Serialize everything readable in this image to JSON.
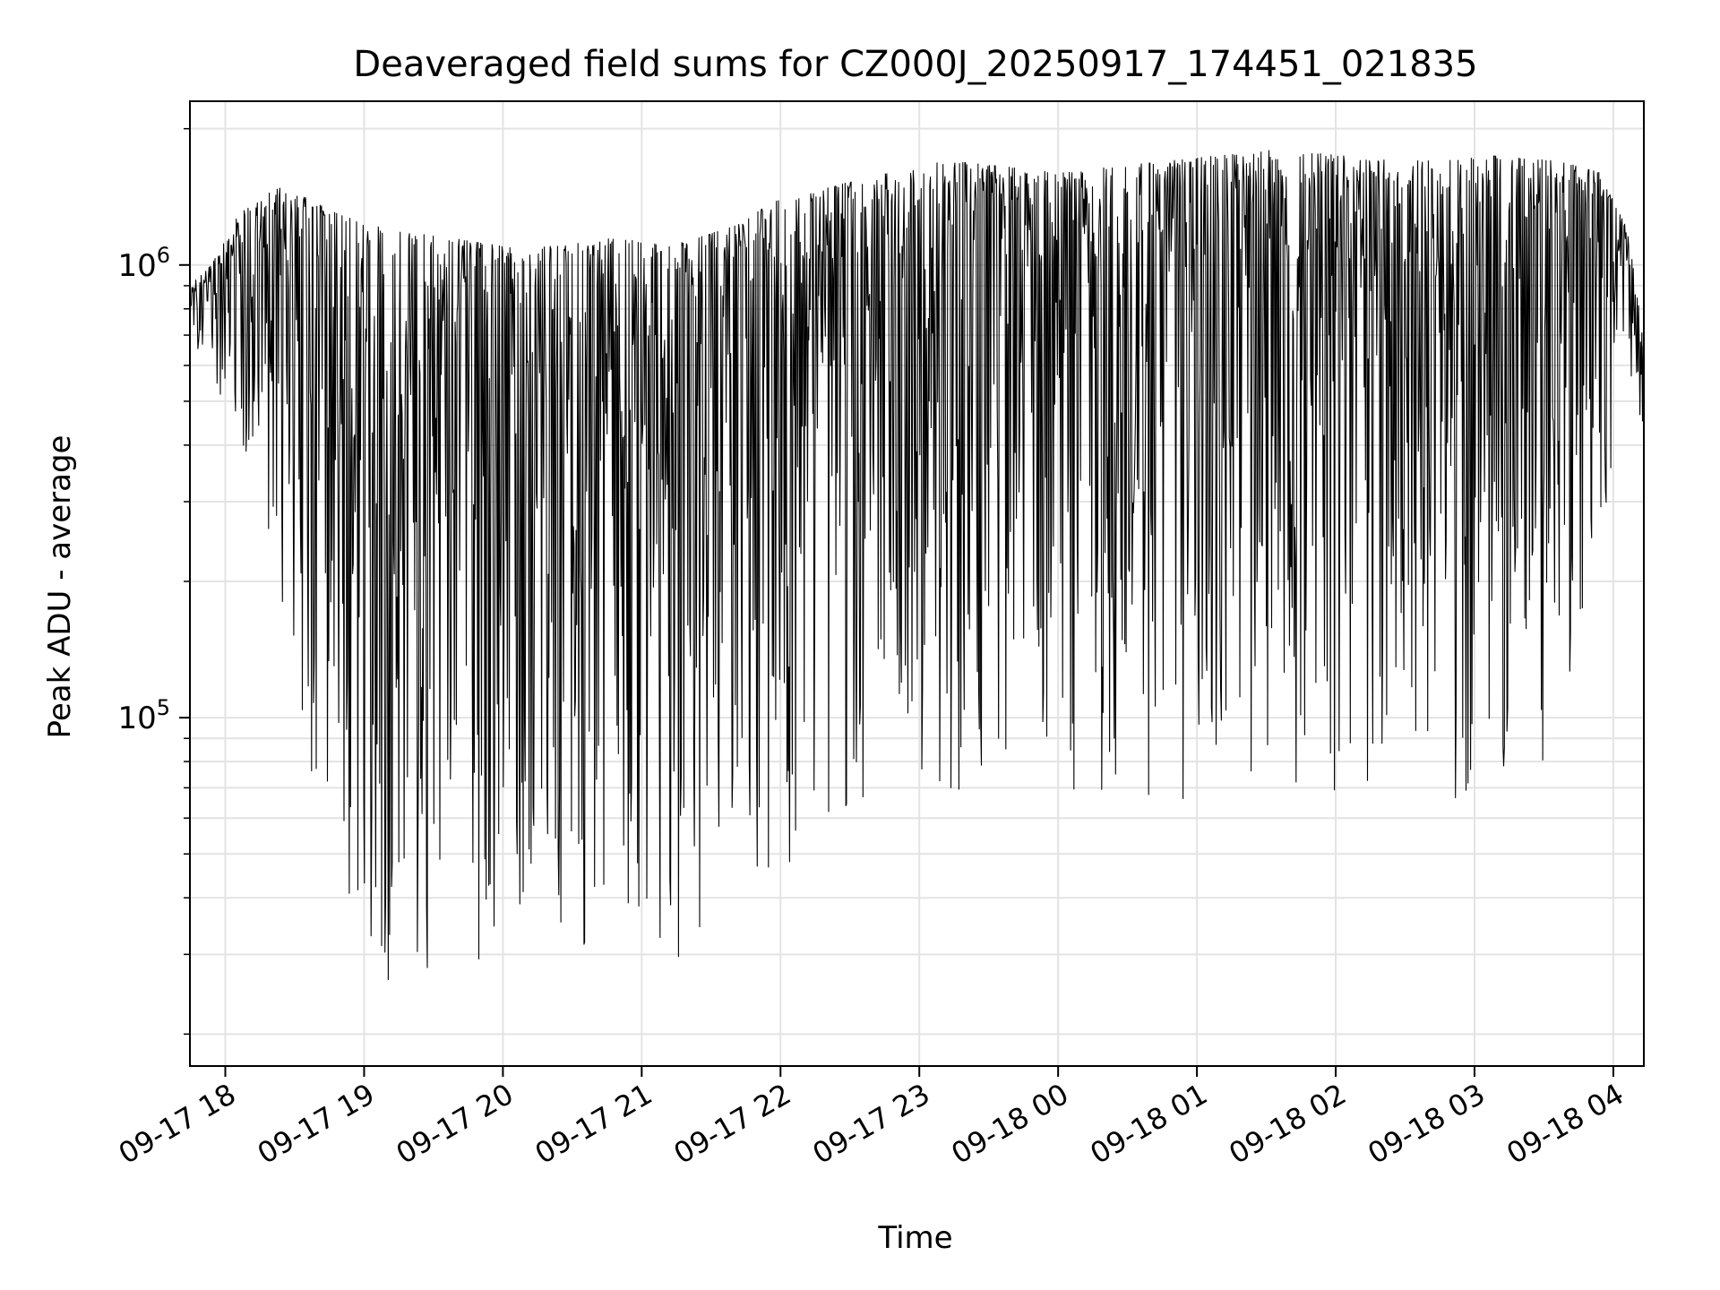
{
  "chart_data": {
    "type": "line",
    "title": "Deaveraged field sums for CZ000J_20250917_174451_021835",
    "xlabel": "Time",
    "ylabel": "Peak ADU - average",
    "yscale": "log",
    "ylim": [
      17000,
      2300000
    ],
    "xlim_hours": [
      17.745,
      28.22
    ],
    "x_tick_labels": [
      "09-17 18",
      "09-17 19",
      "09-17 20",
      "09-17 21",
      "09-17 22",
      "09-17 23",
      "09-18 00",
      "09-18 01",
      "09-18 02",
      "09-18 03",
      "09-18 04"
    ],
    "x_tick_hours": [
      18,
      19,
      20,
      21,
      22,
      23,
      24,
      25,
      26,
      27,
      28
    ],
    "y_major_ticks": [
      {
        "value": 100000,
        "base": "10",
        "exp": "5"
      },
      {
        "value": 1000000,
        "base": "10",
        "exp": "6"
      }
    ],
    "y_minor_ticks": [
      20000,
      30000,
      40000,
      50000,
      60000,
      70000,
      80000,
      90000,
      200000,
      300000,
      400000,
      500000,
      600000,
      700000,
      800000,
      900000,
      2000000
    ],
    "grid": true,
    "series": [
      {
        "name": "field sums",
        "color": "#000000",
        "envelope_hours": [
          17.745,
          17.9,
          18.1,
          18.4,
          18.8,
          19.2,
          19.6,
          20.0,
          20.4,
          20.8,
          21.2,
          21.6,
          22.0,
          22.4,
          22.8,
          23.2,
          23.6,
          24.0,
          24.4,
          24.8,
          25.2,
          25.6,
          26.0,
          26.4,
          26.8,
          27.2,
          27.6,
          27.9,
          28.1,
          28.22
        ],
        "envelope_high": [
          900000,
          1000000,
          1300000,
          1500000,
          1300000,
          1200000,
          1150000,
          1100000,
          1100000,
          1150000,
          1100000,
          1200000,
          1400000,
          1500000,
          1600000,
          1700000,
          1650000,
          1600000,
          1650000,
          1700000,
          1750000,
          1800000,
          1750000,
          1700000,
          1700000,
          1750000,
          1700000,
          1600000,
          1200000,
          700000
        ],
        "envelope_low": [
          650000,
          600000,
          350000,
          180000,
          30000,
          25000,
          28000,
          30000,
          32000,
          30000,
          28000,
          35000,
          45000,
          55000,
          65000,
          65000,
          65000,
          60000,
          60000,
          60000,
          65000,
          65000,
          65000,
          60000,
          65000,
          70000,
          80000,
          250000,
          500000,
          350000
        ],
        "n_samples": 2200
      }
    ]
  }
}
